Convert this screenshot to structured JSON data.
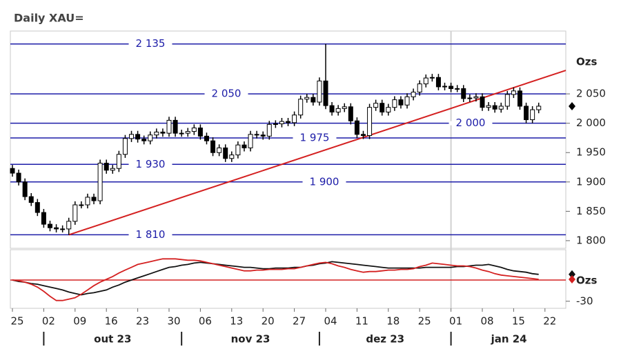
{
  "chart_data": {
    "type": "candlestick",
    "title": "Daily XAU=",
    "units": "Ozs",
    "categories": [
      "25",
      null,
      null,
      null,
      null,
      "02",
      null,
      null,
      null,
      null,
      "09",
      null,
      null,
      null,
      null,
      "16",
      null,
      null,
      null,
      null,
      "23",
      null,
      null,
      null,
      null,
      "30",
      null,
      null,
      null,
      null,
      "06",
      null,
      null,
      null,
      null,
      "13",
      null,
      null,
      null,
      null,
      "20",
      null,
      null,
      null,
      null,
      "27",
      null,
      null,
      null,
      null,
      "04",
      null,
      null,
      null,
      null,
      "11",
      null,
      null,
      null,
      null,
      "18",
      null,
      null,
      null,
      null,
      "25",
      null,
      null,
      null,
      null,
      "01",
      null,
      null,
      null,
      null,
      "08",
      null,
      null,
      null,
      null,
      "15",
      null,
      null,
      null,
      null,
      "22",
      null,
      null,
      null
    ],
    "months": [
      "out 23",
      "nov 23",
      "dez 23",
      "jan 24"
    ],
    "open": [
      1923,
      1915,
      1900,
      1875,
      1865,
      1848,
      1828,
      1822,
      1820,
      1820,
      1833,
      1861,
      1861,
      1874,
      1868,
      1932,
      1920,
      1923,
      1947,
      1974,
      1981,
      1973,
      1970,
      1980,
      1985,
      1983,
      2005,
      1983,
      1983,
      1986,
      1992,
      1978,
      1970,
      1950,
      1958,
      1940,
      1946,
      1963,
      1958,
      1981,
      1980,
      1978,
      1998,
      1999,
      2003,
      2001,
      2014,
      2041,
      2044,
      2036,
      2072,
      2030,
      2019,
      2025,
      2028,
      2004,
      1981,
      1979,
      2027,
      2034,
      2019,
      2027,
      2040,
      2031,
      2045,
      2053,
      2067,
      2077,
      2078,
      2062,
      2063,
      2059,
      2059,
      2042,
      2043,
      2045,
      2027,
      2030,
      2024,
      2029,
      2049,
      2055,
      2029,
      2006,
      2023,
      null,
      null,
      null,
      null
    ],
    "high": [
      1929,
      1921,
      1906,
      1881,
      1871,
      1854,
      1834,
      1828,
      1826,
      1839,
      1867,
      1867,
      1880,
      1880,
      1938,
      1938,
      1929,
      1953,
      1980,
      1987,
      1987,
      1979,
      1986,
      1991,
      1991,
      2011,
      2011,
      1989,
      1992,
      1998,
      1998,
      1984,
      1976,
      1964,
      1964,
      1952,
      1969,
      1969,
      1987,
      1987,
      1986,
      2004,
      2005,
      2009,
      2009,
      2020,
      2047,
      2050,
      2050,
      2078,
      2135,
      2036,
      2031,
      2034,
      2034,
      2010,
      1987,
      2033,
      2040,
      2040,
      2033,
      2046,
      2046,
      2051,
      2059,
      2073,
      2083,
      2084,
      2084,
      2069,
      2069,
      2065,
      2065,
      2049,
      2051,
      2051,
      2036,
      2036,
      2035,
      2055,
      2061,
      2061,
      2035,
      2029,
      2035,
      null,
      null,
      null,
      null
    ],
    "low": [
      1909,
      1894,
      1869,
      1859,
      1842,
      1822,
      1816,
      1814,
      1814,
      1810,
      1827,
      1855,
      1855,
      1862,
      1862,
      1914,
      1914,
      1917,
      1941,
      1968,
      1967,
      1964,
      1964,
      1974,
      1977,
      1977,
      1977,
      1977,
      1977,
      1980,
      1972,
      1964,
      1944,
      1944,
      1934,
      1934,
      1940,
      1952,
      1952,
      1974,
      1972,
      1972,
      1992,
      1993,
      1995,
      1995,
      2008,
      2035,
      2030,
      2030,
      2024,
      2013,
      2013,
      2019,
      1998,
      1975,
      1973,
      1973,
      2021,
      2013,
      2013,
      2021,
      2025,
      2025,
      2039,
      2047,
      2061,
      2071,
      2056,
      2056,
      2053,
      2053,
      2036,
      2036,
      2037,
      2021,
      2021,
      2018,
      2018,
      2023,
      2043,
      2023,
      2000,
      2000,
      2017,
      null,
      null,
      null,
      null
    ],
    "close": [
      1915,
      1900,
      1875,
      1865,
      1848,
      1828,
      1822,
      1820,
      1820,
      1833,
      1861,
      1861,
      1874,
      1868,
      1932,
      1920,
      1923,
      1947,
      1974,
      1981,
      1973,
      1970,
      1980,
      1985,
      1983,
      2005,
      1983,
      1983,
      1986,
      1992,
      1978,
      1970,
      1950,
      1958,
      1940,
      1946,
      1963,
      1958,
      1981,
      1980,
      1978,
      1998,
      1999,
      2003,
      2001,
      2014,
      2041,
      2044,
      2036,
      2072,
      2030,
      2019,
      2025,
      2028,
      2004,
      1981,
      1979,
      2027,
      2034,
      2019,
      2027,
      2040,
      2031,
      2045,
      2053,
      2067,
      2077,
      2078,
      2062,
      2063,
      2059,
      2059,
      2042,
      2043,
      2045,
      2027,
      2030,
      2024,
      2029,
      2049,
      2055,
      2029,
      2006,
      2023,
      2029,
      null,
      null,
      null,
      null
    ],
    "ylim": [
      1787,
      2157
    ],
    "yticks": [
      {
        "value": 1800,
        "label": "1 800"
      },
      {
        "value": 1850,
        "label": "1 850"
      },
      {
        "value": 1900,
        "label": "1 900"
      },
      {
        "value": 1950,
        "label": "1 950"
      },
      {
        "value": 2000,
        "label": "2 000"
      },
      {
        "value": 2050,
        "label": "2 050"
      }
    ],
    "levels": [
      {
        "value": 2135,
        "label": "2 135"
      },
      {
        "value": 2050,
        "label": "2 050"
      },
      {
        "value": 2000,
        "label": "2 000"
      },
      {
        "value": 1975,
        "label": "1 975"
      },
      {
        "value": 1930,
        "label": "1 930"
      },
      {
        "value": 1900,
        "label": "1 900"
      },
      {
        "value": 1810,
        "label": "1 810"
      }
    ],
    "level_color": "#1c1ca8",
    "trendline": [
      1810,
      2090
    ],
    "trendline_color": "#d42020",
    "indicator": {
      "units": "Ozs",
      "ylim": [
        -40,
        40
      ],
      "yticks": [
        -30
      ],
      "reference_line": 0,
      "reference_color": "#d42020",
      "series": [
        {
          "color": "#111111",
          "values": [
            0,
            -2,
            -3,
            -5,
            -6,
            -8,
            -10,
            -12,
            -14,
            -17,
            -19,
            -21,
            -19,
            -18,
            -16,
            -14,
            -10,
            -7,
            -3,
            0,
            3,
            6,
            9,
            12,
            15,
            18,
            19,
            21,
            22,
            24,
            25,
            24,
            23,
            22,
            21,
            20,
            19,
            18,
            18,
            17,
            16,
            16,
            17,
            17,
            17,
            18,
            18,
            20,
            21,
            23,
            24,
            26,
            25,
            24,
            23,
            22,
            21,
            20,
            19,
            18,
            17,
            17,
            17,
            17,
            17,
            17,
            18,
            18,
            18,
            18,
            18,
            19,
            19,
            20,
            21,
            21,
            22,
            20,
            18,
            15,
            13,
            12,
            11,
            9,
            8,
            null,
            null,
            null,
            null
          ]
        },
        {
          "color": "#d42020",
          "values": [
            0,
            -1,
            -3,
            -6,
            -10,
            -16,
            -23,
            -29,
            -29,
            -27,
            -25,
            -20,
            -14,
            -8,
            -3,
            1,
            5,
            10,
            14,
            18,
            22,
            24,
            26,
            28,
            30,
            30,
            30,
            29,
            28,
            28,
            27,
            25,
            23,
            21,
            19,
            17,
            15,
            13,
            13,
            14,
            14,
            15,
            15,
            15,
            16,
            16,
            18,
            20,
            22,
            24,
            25,
            23,
            20,
            18,
            15,
            13,
            11,
            12,
            12,
            13,
            14,
            14,
            15,
            15,
            16,
            19,
            21,
            24,
            23,
            22,
            21,
            20,
            20,
            19,
            17,
            14,
            12,
            9,
            7,
            6,
            5,
            4,
            3,
            2,
            1,
            null,
            null,
            null,
            null
          ]
        }
      ]
    }
  }
}
